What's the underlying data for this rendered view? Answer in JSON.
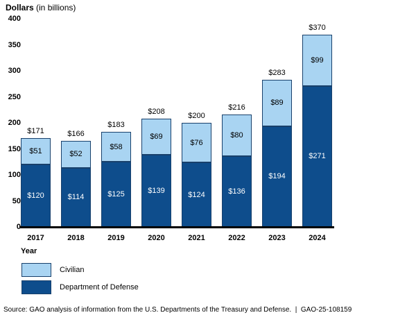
{
  "title": {
    "main": "Dollars",
    "suffix": " (in billions)"
  },
  "chart_data": {
    "type": "bar",
    "stacked": true,
    "categories": [
      "2017",
      "2018",
      "2019",
      "2020",
      "2021",
      "2022",
      "2023",
      "2024"
    ],
    "series": [
      {
        "name": "Department of Defense",
        "color": "#0e4d8c",
        "label_color": "#ffffff",
        "values": [
          120,
          114,
          125,
          139,
          124,
          136,
          194,
          271
        ]
      },
      {
        "name": "Civilian",
        "color": "#a9d4f2",
        "label_color": "#000000",
        "values": [
          51,
          52,
          58,
          69,
          76,
          80,
          89,
          99
        ]
      }
    ],
    "totals": [
      171,
      166,
      183,
      208,
      200,
      216,
      283,
      370
    ],
    "value_prefix": "$",
    "xlabel": "Year",
    "ylabel": "Dollars (in billions)",
    "ylim": [
      0,
      400
    ],
    "yticks": [
      0,
      50,
      100,
      150,
      200,
      250,
      300,
      350,
      400
    ],
    "grid": false,
    "legend_position": "bottom-left"
  },
  "legend": {
    "items": [
      {
        "label": "Civilian",
        "color": "#a9d4f2"
      },
      {
        "label": "Department of Defense",
        "color": "#0e4d8c"
      }
    ]
  },
  "source_note": "Source: GAO analysis of information from the U.S. Departments of the Treasury and Defense.  |  GAO-25-108159",
  "colors": {
    "civilian": "#a9d4f2",
    "department_of_defense": "#0e4d8c",
    "segment_border": "#18406b",
    "axis": "#000000",
    "background": "#ffffff"
  }
}
